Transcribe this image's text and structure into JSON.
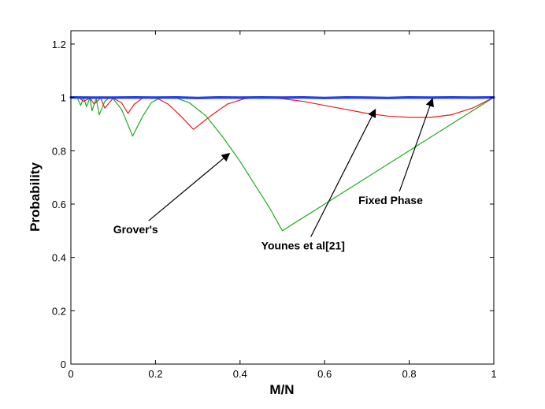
{
  "chart_data": {
    "type": "line",
    "title": "",
    "xlabel": "M/N",
    "ylabel": "Probability",
    "xlim": [
      0,
      1
    ],
    "ylim": [
      0,
      1.25
    ],
    "xticks": [
      0,
      0.2,
      0.4,
      0.6,
      0.8,
      1
    ],
    "xtick_labels": [
      "0",
      "0.2",
      "0.4",
      "0.6",
      "0.8",
      "1"
    ],
    "yticks": [
      0,
      0.2,
      0.4,
      0.6,
      0.8,
      1,
      1.2
    ],
    "ytick_labels": [
      "0",
      "0.2",
      "0.4",
      "0.6",
      "0.8",
      "1",
      "1.2"
    ],
    "grid": false,
    "series": [
      {
        "name": "Grover's",
        "color": "#1faa1f",
        "x": [
          0,
          0.015,
          0.023,
          0.03,
          0.037,
          0.045,
          0.05,
          0.06,
          0.067,
          0.08,
          0.09,
          0.1,
          0.12,
          0.146,
          0.17,
          0.19,
          0.21,
          0.23,
          0.25,
          0.28,
          0.32,
          0.36,
          0.4,
          0.44,
          0.47,
          0.5,
          0.6,
          0.7,
          0.8,
          0.9,
          1.0
        ],
        "values": [
          1.0,
          0.999,
          0.97,
          0.999,
          0.965,
          0.999,
          0.95,
          0.995,
          0.935,
          0.985,
          0.998,
          0.995,
          0.955,
          0.855,
          0.93,
          0.98,
          0.998,
          1.0,
          0.997,
          0.98,
          0.93,
          0.85,
          0.76,
          0.66,
          0.585,
          0.5,
          0.6,
          0.7,
          0.8,
          0.9,
          1.0
        ]
      },
      {
        "name": "Younes et al[21]",
        "color": "#e81c1c",
        "x": [
          0,
          0.02,
          0.03,
          0.045,
          0.055,
          0.07,
          0.08,
          0.1,
          0.12,
          0.135,
          0.15,
          0.17,
          0.2,
          0.23,
          0.26,
          0.29,
          0.33,
          0.37,
          0.41,
          0.45,
          0.5,
          0.55,
          0.6,
          0.65,
          0.7,
          0.75,
          0.8,
          0.85,
          0.9,
          0.95,
          1.0
        ],
        "values": [
          1.0,
          0.998,
          0.985,
          0.998,
          0.975,
          0.998,
          0.96,
          0.997,
          0.98,
          0.94,
          0.975,
          0.998,
          1.0,
          0.975,
          0.93,
          0.88,
          0.93,
          0.975,
          0.995,
          1.0,
          0.995,
          0.985,
          0.97,
          0.955,
          0.94,
          0.93,
          0.925,
          0.925,
          0.935,
          0.96,
          1.0
        ]
      },
      {
        "name": "Fixed Phase",
        "color": "#1f3fe8",
        "x": [
          0,
          0.05,
          0.1,
          0.15,
          0.2,
          0.25,
          0.3,
          0.35,
          0.4,
          0.45,
          0.5,
          0.55,
          0.6,
          0.65,
          0.7,
          0.75,
          0.8,
          0.85,
          0.9,
          0.95,
          1.0
        ],
        "values": [
          1.0,
          0.999,
          0.999,
          1.0,
          0.999,
          1.0,
          0.998,
          1.0,
          0.999,
          1.0,
          0.999,
          1.0,
          0.998,
          1.0,
          0.999,
          0.998,
          1.0,
          0.999,
          1.0,
          0.999,
          1.0
        ]
      }
    ],
    "annotations": [
      {
        "text": "Grover's",
        "text_at": [
          0.1,
          0.49
        ],
        "arrow_to": [
          0.375,
          0.79
        ]
      },
      {
        "text": "Younes et al[21]",
        "text_at": [
          0.45,
          0.43
        ],
        "arrow_to": [
          0.72,
          0.955
        ]
      },
      {
        "text": "Fixed Phase",
        "text_at": [
          0.68,
          0.6
        ],
        "arrow_to": [
          0.855,
          0.995
        ]
      }
    ]
  }
}
